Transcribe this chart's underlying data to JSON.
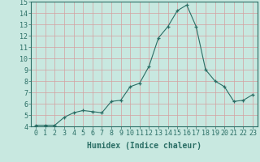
{
  "x": [
    0,
    1,
    2,
    3,
    4,
    5,
    6,
    7,
    8,
    9,
    10,
    11,
    12,
    13,
    14,
    15,
    16,
    17,
    18,
    19,
    20,
    21,
    22,
    23
  ],
  "y": [
    4.1,
    4.1,
    4.1,
    4.8,
    5.2,
    5.4,
    5.3,
    5.2,
    6.2,
    6.3,
    7.5,
    7.8,
    9.3,
    11.8,
    12.8,
    14.2,
    14.7,
    12.8,
    9.0,
    8.0,
    7.5,
    6.2,
    6.3,
    6.8
  ],
  "xlabel": "Humidex (Indice chaleur)",
  "ylim": [
    4,
    15
  ],
  "xlim_min": -0.5,
  "xlim_max": 23.5,
  "yticks": [
    4,
    5,
    6,
    7,
    8,
    9,
    10,
    11,
    12,
    13,
    14,
    15
  ],
  "xticks": [
    0,
    1,
    2,
    3,
    4,
    5,
    6,
    7,
    8,
    9,
    10,
    11,
    12,
    13,
    14,
    15,
    16,
    17,
    18,
    19,
    20,
    21,
    22,
    23
  ],
  "line_color": "#2a6e65",
  "marker": "+",
  "bg_color": "#c8e8e0",
  "grid_color": "#d4a0a0",
  "axes_color": "#2a6e65",
  "tick_label_color": "#2a6e65",
  "xlabel_color": "#2a6e65",
  "xlabel_fontsize": 7,
  "tick_fontsize": 6
}
